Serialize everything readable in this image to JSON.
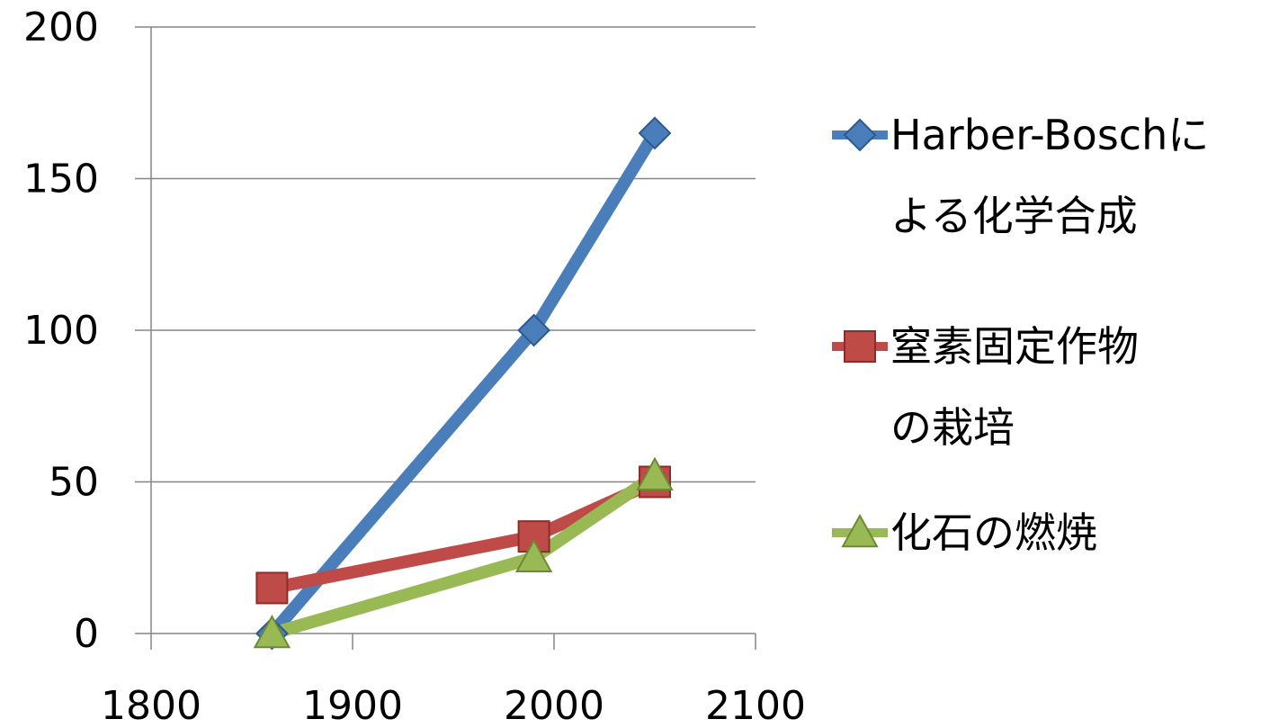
{
  "chart_data": {
    "type": "line",
    "title": "",
    "xlabel": "",
    "ylabel": "",
    "xlim": [
      1800,
      2100
    ],
    "ylim": [
      0,
      200
    ],
    "x_ticks": [
      "1800",
      "1900",
      "2000",
      "2100"
    ],
    "y_ticks": [
      "0",
      "50",
      "100",
      "150",
      "200"
    ],
    "grid": "horizontal",
    "legend_position": "right",
    "series": [
      {
        "name_lines": [
          "Harber-Boschに",
          "よる化学合成"
        ],
        "color": "#4A7EBB",
        "marker": "diamond",
        "points": [
          [
            1860,
            0
          ],
          [
            1990,
            100
          ],
          [
            2050,
            165
          ]
        ]
      },
      {
        "name_lines": [
          "窒素固定作物",
          "の栽培"
        ],
        "color": "#BE4B48",
        "marker": "square",
        "points": [
          [
            1860,
            15
          ],
          [
            1990,
            32
          ],
          [
            2050,
            50
          ]
        ]
      },
      {
        "name_lines": [
          "化石の燃焼"
        ],
        "color": "#98B954",
        "marker": "triangle",
        "points": [
          [
            1860,
            0
          ],
          [
            1990,
            25
          ],
          [
            2050,
            52
          ]
        ]
      }
    ]
  }
}
